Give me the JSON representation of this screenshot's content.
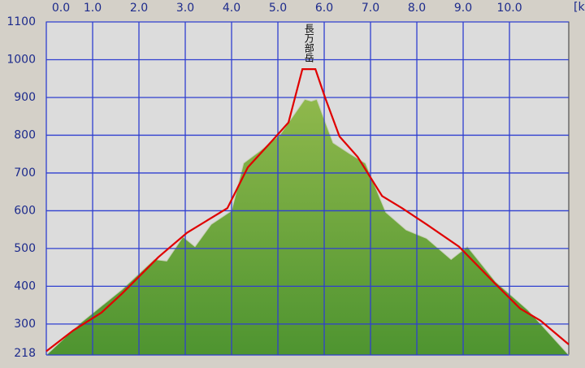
{
  "chart_data": {
    "type": "area",
    "x_label": "[km",
    "annotation": "長万部岳",
    "xlim": [
      0,
      11.28
    ],
    "ylim": [
      218,
      1100
    ],
    "xticks": [
      {
        "value": 0,
        "label": "0.0"
      },
      {
        "value": 1,
        "label": "1.0"
      },
      {
        "value": 2,
        "label": "2.0"
      },
      {
        "value": 3,
        "label": "3.0"
      },
      {
        "value": 4,
        "label": "4.0"
      },
      {
        "value": 5,
        "label": "5.0"
      },
      {
        "value": 6,
        "label": "6.0"
      },
      {
        "value": 7,
        "label": "7.0"
      },
      {
        "value": 8,
        "label": "8.0"
      },
      {
        "value": 9,
        "label": "9.0"
      },
      {
        "value": 10,
        "label": "10.0"
      }
    ],
    "yticks": [
      218,
      300,
      400,
      500,
      600,
      700,
      800,
      900,
      1000,
      1100
    ],
    "grid": true,
    "series": [
      {
        "type": "area",
        "color": "#6fa23a",
        "x": [
          0,
          0.75,
          1.63,
          2.33,
          2.6,
          2.95,
          3.21,
          3.56,
          4.0,
          4.26,
          4.61,
          5.05,
          5.58,
          5.72,
          5.84,
          6.19,
          6.54,
          6.89,
          7.33,
          7.77,
          8.21,
          8.74,
          9.09,
          9.7,
          10.4,
          11.28
        ],
        "values": [
          218,
          304,
          391,
          471,
          467,
          531,
          505,
          564,
          600,
          726,
          758,
          802,
          895,
          890,
          895,
          780,
          752,
          726,
          596,
          549,
          527,
          471,
          505,
          412,
          337,
          218
        ]
      },
      {
        "type": "line",
        "color": "#e00000",
        "x": [
          0,
          0.58,
          1.19,
          1.63,
          2.42,
          3.04,
          3.91,
          4.35,
          4.88,
          5.23,
          5.53,
          5.81,
          6.02,
          6.33,
          6.72,
          7.25,
          7.68,
          8.21,
          8.91,
          9.7,
          10.23,
          10.67,
          11.28
        ],
        "values": [
          228,
          283,
          330,
          380,
          477,
          542,
          607,
          715,
          786,
          834,
          975,
          975,
          899,
          797,
          743,
          639,
          607,
          564,
          505,
          406,
          341,
          309,
          246
        ]
      }
    ]
  }
}
